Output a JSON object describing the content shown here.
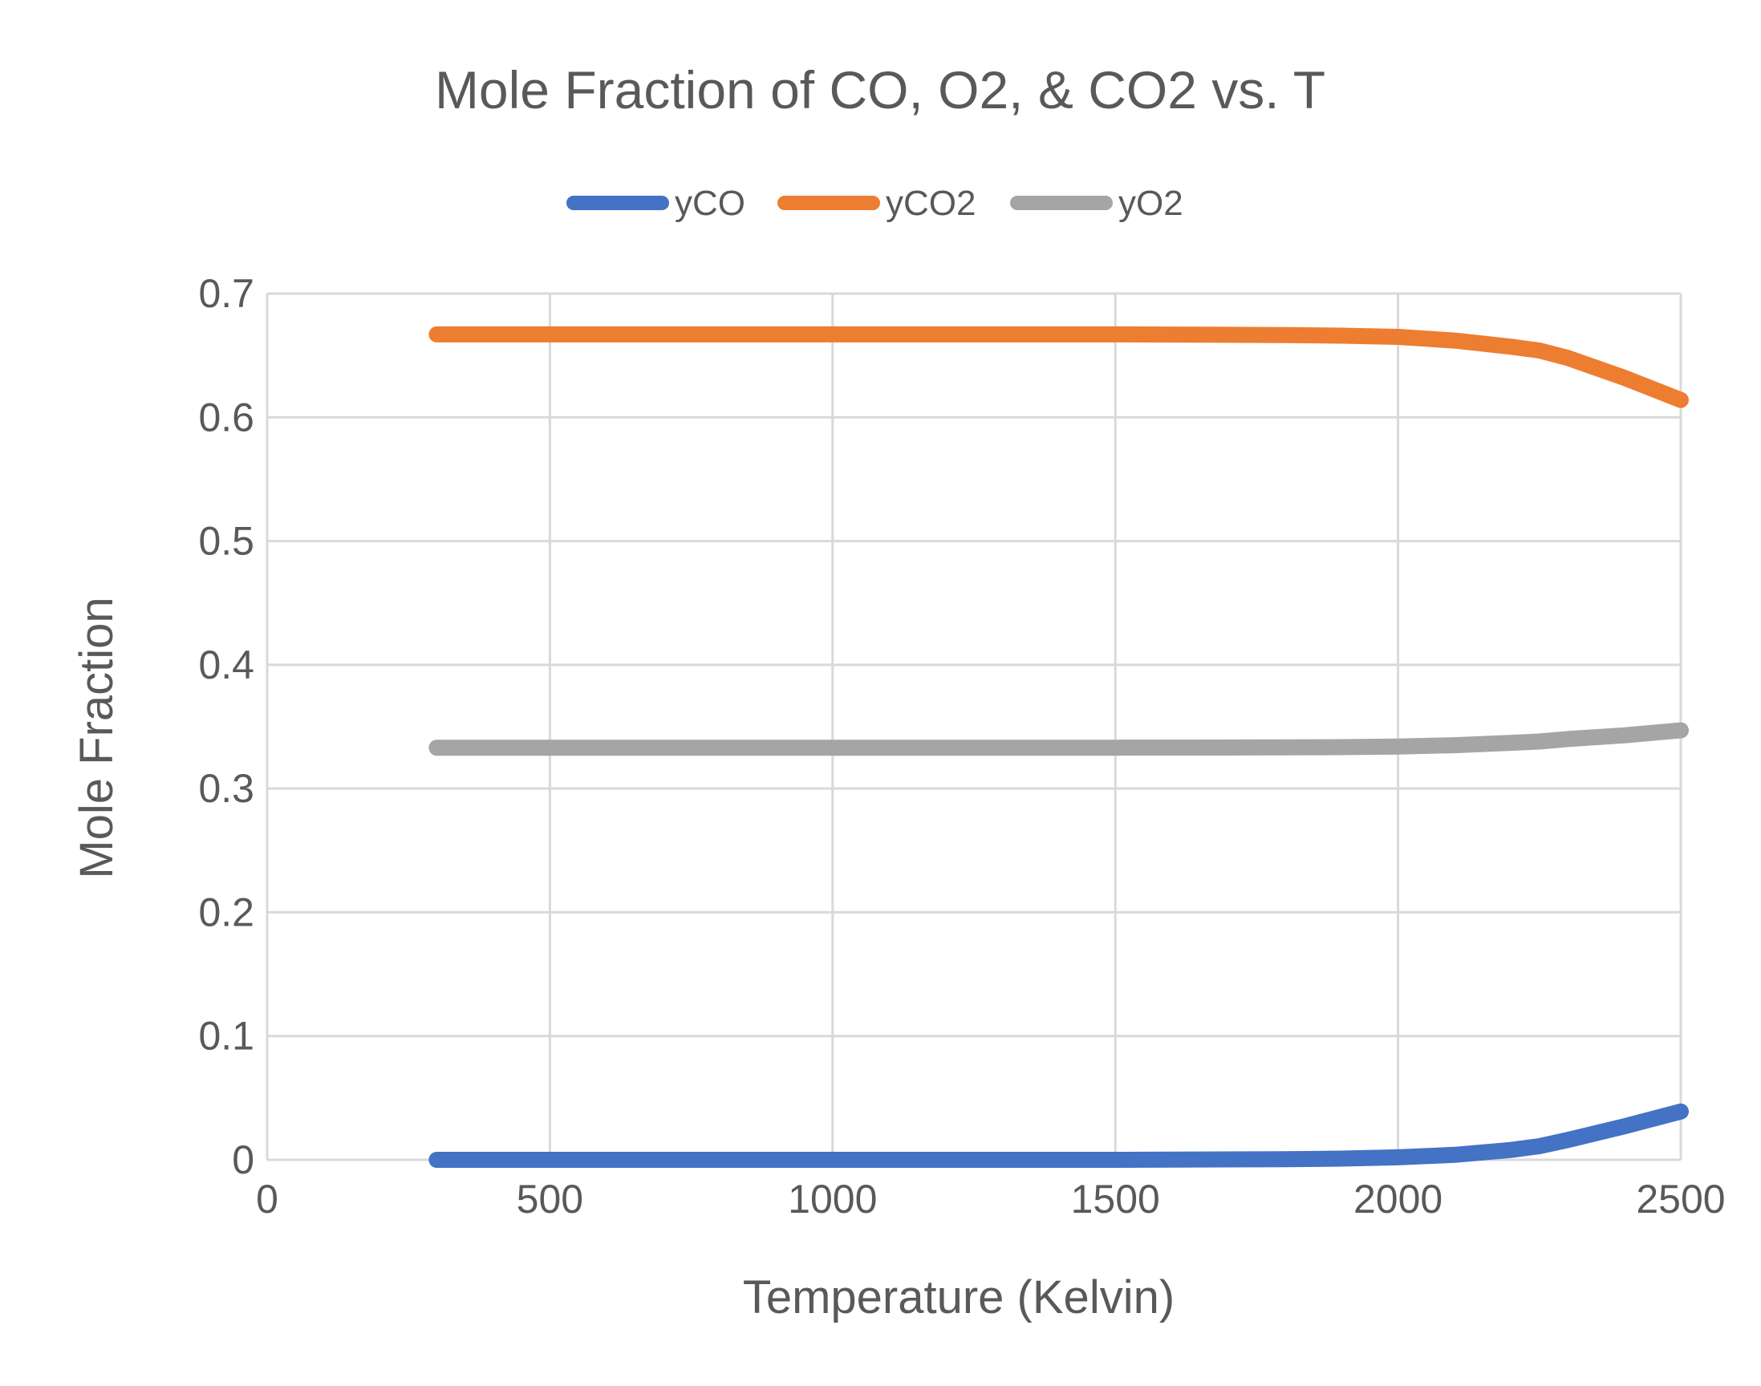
{
  "chart_data": {
    "type": "line",
    "title": "Mole Fraction of CO, O2, & CO2 vs. T",
    "xlabel": "Temperature (Kelvin)",
    "ylabel": "Mole Fraction",
    "xlim": [
      0,
      2500
    ],
    "ylim": [
      0,
      0.7
    ],
    "x_ticks": [
      0,
      500,
      1000,
      1500,
      2000,
      2500
    ],
    "y_ticks": [
      0,
      0.1,
      0.2,
      0.3,
      0.4,
      0.5,
      0.6,
      0.7
    ],
    "x_tick_labels": [
      "0",
      "500",
      "1000",
      "1500",
      "2000",
      "2500"
    ],
    "y_tick_labels": [
      "0",
      "0.1",
      "0.2",
      "0.3",
      "0.4",
      "0.5",
      "0.6",
      "0.7"
    ],
    "grid": true,
    "legend": "top",
    "series": [
      {
        "name": "yCO",
        "color": "#4472c4",
        "x": [
          300,
          500,
          1000,
          1500,
          1800,
          1900,
          2000,
          2100,
          2200,
          2250,
          2300,
          2400,
          2500
        ],
        "y": [
          0,
          0,
          0,
          0,
          0.0005,
          0.001,
          0.002,
          0.004,
          0.008,
          0.011,
          0.016,
          0.027,
          0.039
        ]
      },
      {
        "name": "yCO2",
        "color": "#ed7d31",
        "x": [
          300,
          500,
          1000,
          1500,
          1800,
          1900,
          2000,
          2100,
          2200,
          2250,
          2300,
          2400,
          2500
        ],
        "y": [
          0.667,
          0.667,
          0.667,
          0.667,
          0.6665,
          0.666,
          0.665,
          0.662,
          0.657,
          0.654,
          0.648,
          0.632,
          0.614
        ]
      },
      {
        "name": "yO2",
        "color": "#a5a5a5",
        "x": [
          300,
          500,
          1000,
          1500,
          1800,
          1900,
          2000,
          2100,
          2200,
          2250,
          2300,
          2400,
          2500
        ],
        "y": [
          0.333,
          0.333,
          0.333,
          0.333,
          0.3333,
          0.3335,
          0.334,
          0.335,
          0.337,
          0.338,
          0.34,
          0.343,
          0.347
        ]
      }
    ]
  }
}
